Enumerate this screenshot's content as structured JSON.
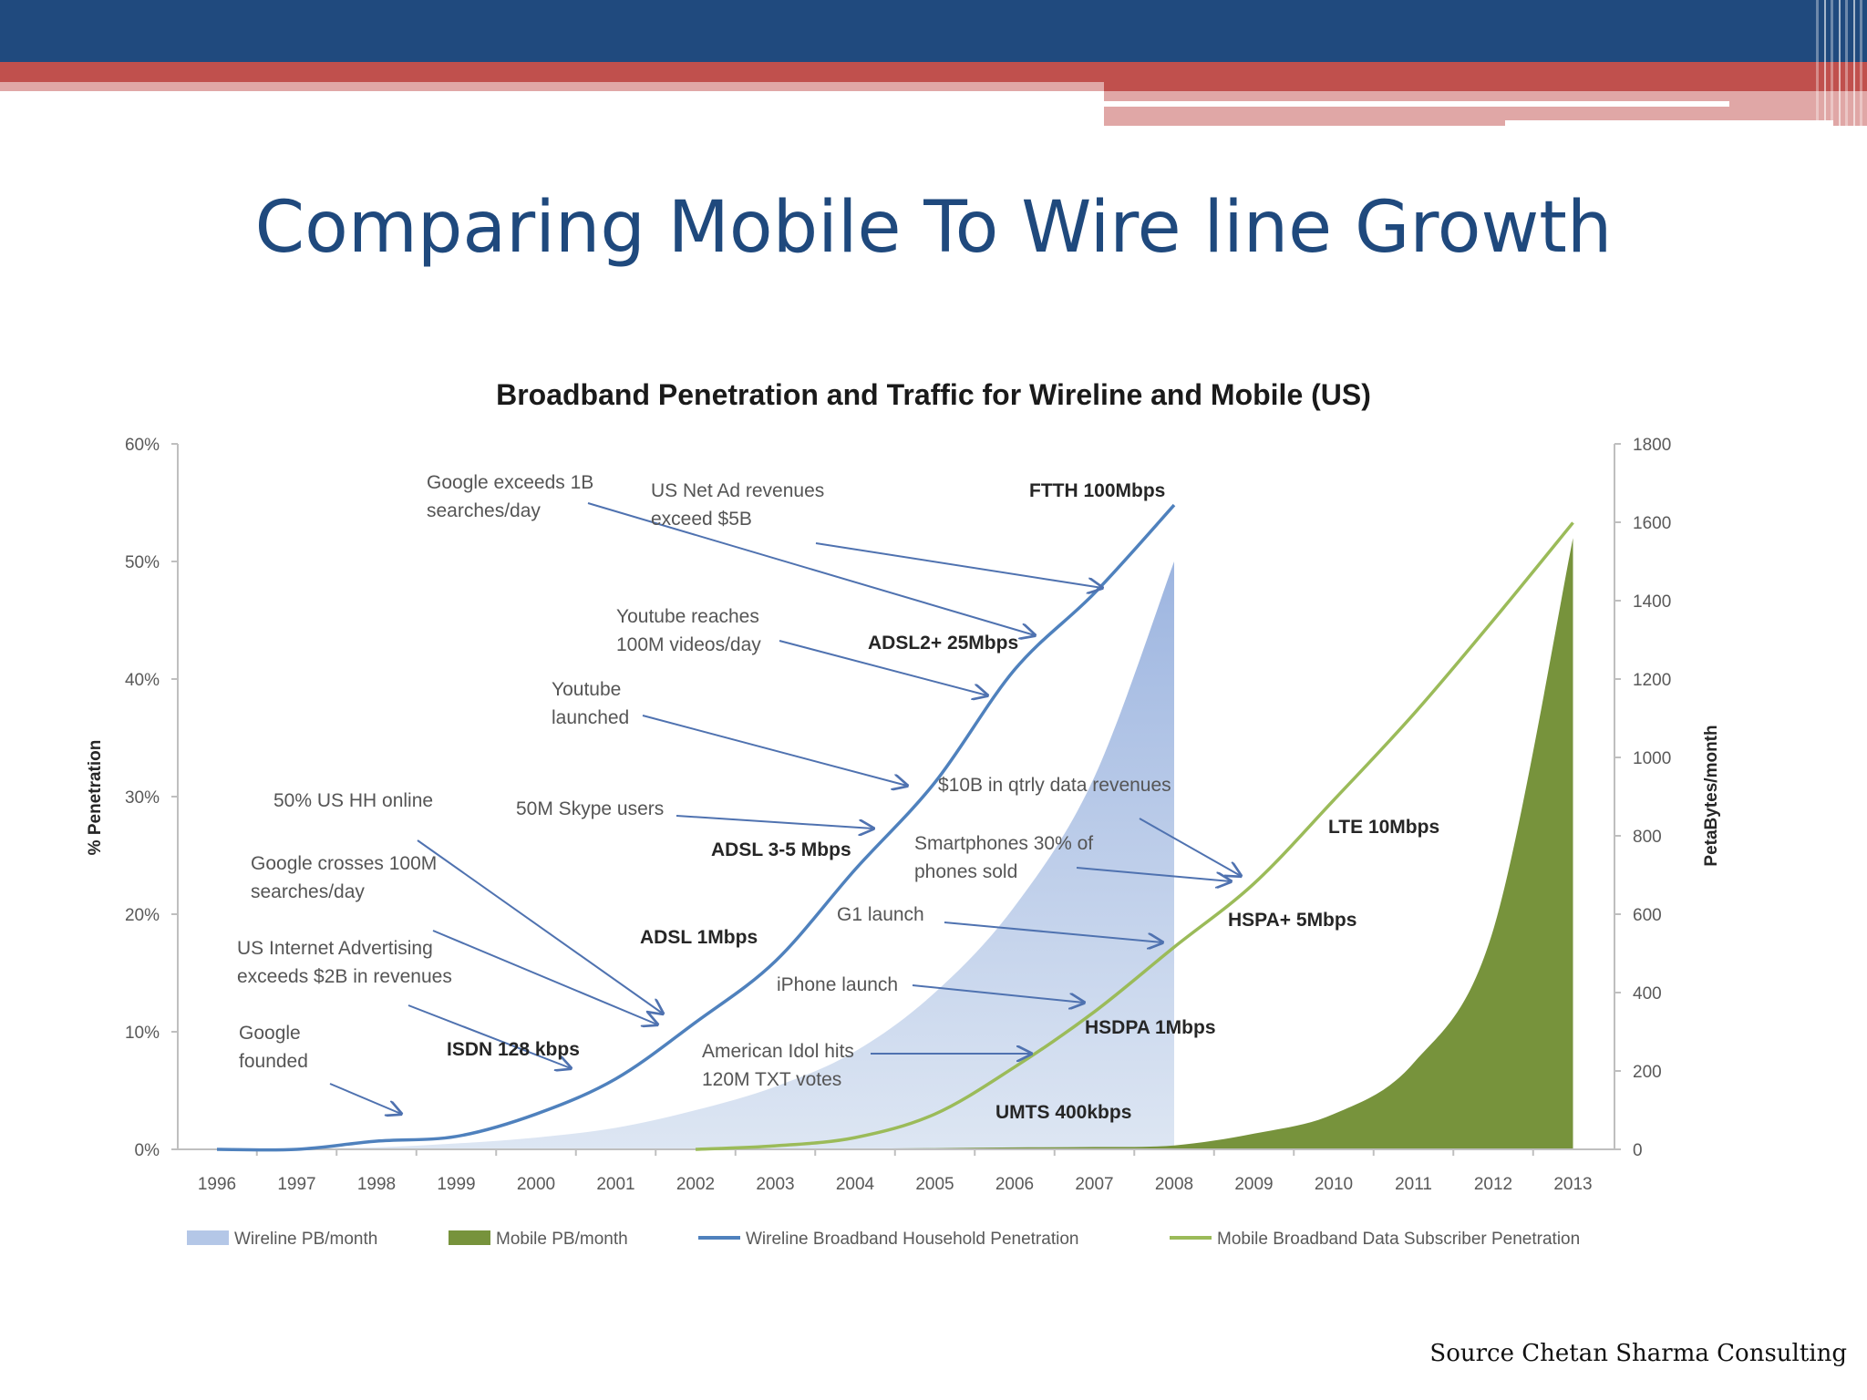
{
  "slide": {
    "title": "Comparing Mobile To Wire line Growth",
    "source": "Source Chetan Sharma Consulting",
    "colors": {
      "header_blue": "#204a7e",
      "header_red": "#c0504d",
      "header_pink": "#e0a7a6",
      "title_blue": "#1f497d"
    }
  },
  "chart_data": {
    "type": "area",
    "title": "Broadband Penetration and Traffic for Wireline and Mobile (US)",
    "xlabel": "",
    "ylabel": "% Penetration",
    "y2label": "PetaBytes/month",
    "ylim": [
      0,
      60
    ],
    "y2lim": [
      0,
      1800
    ],
    "grid": false,
    "legend_position": "bottom",
    "categories": [
      "1996",
      "1997",
      "1998",
      "1999",
      "2000",
      "2001",
      "2002",
      "2003",
      "2004",
      "2005",
      "2006",
      "2007",
      "2008",
      "2009",
      "2010",
      "2011",
      "2012",
      "2013"
    ],
    "y_ticks": [
      "0%",
      "10%",
      "20%",
      "30%",
      "40%",
      "50%",
      "60%"
    ],
    "y2_ticks": [
      "0",
      "200",
      "400",
      "600",
      "800",
      "1000",
      "1200",
      "1400",
      "1600",
      "1800"
    ],
    "series": [
      {
        "name": "Wireline PB/month",
        "type": "area",
        "axis": "right",
        "color": "#b4c7e7",
        "values": [
          0,
          2,
          5,
          15,
          30,
          55,
          100,
          160,
          250,
          400,
          620,
          950,
          1500,
          null,
          null,
          null,
          null,
          null
        ]
      },
      {
        "name": "Mobile PB/month",
        "type": "area",
        "axis": "right",
        "color": "#77933c",
        "values": [
          null,
          null,
          null,
          null,
          null,
          null,
          0,
          1,
          2,
          3,
          5,
          6,
          10,
          40,
          90,
          220,
          560,
          1560
        ]
      },
      {
        "name": "Wireline Broadband Household Penetration",
        "type": "line",
        "axis": "left",
        "color": "#4f81bd",
        "values": [
          0,
          0,
          0.7,
          1.1,
          3,
          6,
          10.8,
          16,
          23.8,
          31.2,
          40.8,
          47.3,
          54.8,
          null,
          null,
          null,
          null,
          null
        ]
      },
      {
        "name": "Mobile Broadband Data Subscriber Penetration",
        "type": "line",
        "axis": "left",
        "color": "#9bbb59",
        "values": [
          null,
          null,
          null,
          null,
          null,
          null,
          0,
          0.3,
          1,
          3,
          7,
          11.7,
          17.2,
          22.6,
          29.7,
          37,
          45,
          53.3
        ]
      }
    ],
    "annotations": [
      {
        "id": "google_founded",
        "lines": [
          "Google",
          "founded"
        ]
      },
      {
        "id": "us_internet_advertising",
        "lines": [
          "US Internet Advertising",
          "exceeds $2B in revenues"
        ]
      },
      {
        "id": "google_100m",
        "lines": [
          "Google crosses 100M",
          "searches/day"
        ]
      },
      {
        "id": "hh_online",
        "lines": [
          "50% US HH online"
        ]
      },
      {
        "id": "skype",
        "lines": [
          "50M Skype users"
        ]
      },
      {
        "id": "youtube_launched",
        "lines": [
          "Youtube",
          "launched"
        ]
      },
      {
        "id": "youtube_100m",
        "lines": [
          "Youtube reaches",
          "100M videos/day"
        ]
      },
      {
        "id": "google_1b",
        "lines": [
          "Google exceeds 1B",
          "searches/day"
        ]
      },
      {
        "id": "net_ad_5b",
        "lines": [
          "US Net Ad revenues",
          "exceed $5B"
        ]
      },
      {
        "id": "american_idol",
        "lines": [
          "American Idol hits",
          "120M TXT votes"
        ]
      },
      {
        "id": "iphone",
        "lines": [
          "iPhone launch"
        ]
      },
      {
        "id": "g1",
        "lines": [
          "G1 launch"
        ]
      },
      {
        "id": "smartphones",
        "lines": [
          "Smartphones 30% of",
          "phones sold"
        ]
      },
      {
        "id": "data_revenues",
        "lines": [
          "$10B in qtrly data revenues"
        ]
      }
    ],
    "tech_labels": {
      "isdn": "ISDN 128 kbps",
      "adsl1": "ADSL 1Mbps",
      "adsl35": "ADSL 3-5 Mbps",
      "adsl2": "ADSL2+ 25Mbps",
      "ftth": "FTTH 100Mbps",
      "umts": "UMTS 400kbps",
      "hsdpa": "HSDPA 1Mbps",
      "hspa": "HSPA+ 5Mbps",
      "lte": "LTE 10Mbps"
    }
  }
}
